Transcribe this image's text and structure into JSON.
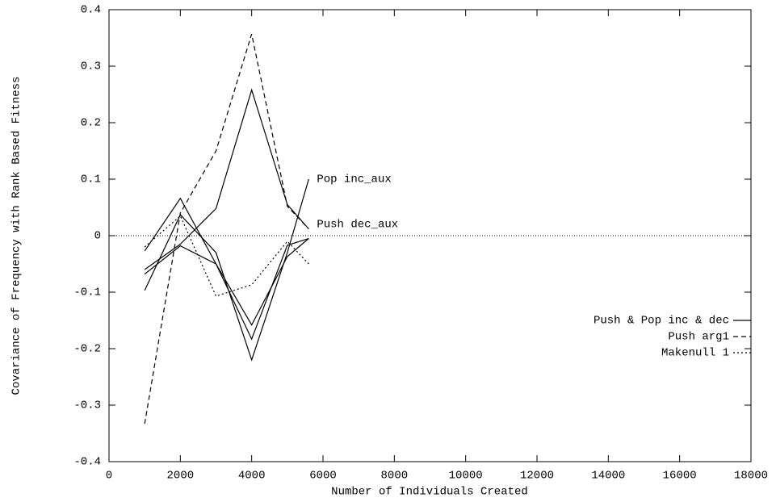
{
  "chart_data": {
    "type": "line",
    "x_label": "Number of Individuals Created",
    "y_label": "Covariance of Frequency with Rank Based Fitness",
    "x": [
      1000,
      2000,
      3000,
      4000,
      5000,
      5600
    ],
    "xlim": [
      0,
      18000
    ],
    "xticks": [
      0,
      2000,
      4000,
      6000,
      8000,
      10000,
      12000,
      14000,
      16000,
      18000
    ],
    "ylim": [
      -0.4,
      0.4
    ],
    "yticks": [
      -0.4,
      -0.3,
      -0.2,
      -0.1,
      0,
      0.1,
      0.2,
      0.3,
      0.4
    ],
    "zero_line": true,
    "legend_position": "right",
    "series": [
      {
        "name": "Push & Pop inc & dec",
        "style": "solid",
        "color": "#000000",
        "lines": [
          {
            "label": "Pop inc_aux",
            "values": [
              -0.097,
              0.037,
              -0.03,
              -0.22,
              -0.03,
              0.1
            ]
          },
          {
            "label": "Push dec_aux",
            "values": [
              -0.06,
              -0.015,
              0.048,
              0.258,
              0.055,
              0.012
            ]
          },
          {
            "values": [
              -0.027,
              0.066,
              -0.05,
              -0.183,
              -0.017,
              -0.005
            ]
          },
          {
            "values": [
              -0.068,
              -0.018,
              -0.05,
              -0.158,
              -0.037,
              -0.005
            ]
          }
        ]
      },
      {
        "name": "Push arg1",
        "style": "dashed",
        "color": "#000000",
        "values": [
          -0.333,
          0.04,
          0.15,
          0.357,
          0.052,
          0.012
        ]
      },
      {
        "name": "Makenull 1",
        "style": "dotted",
        "color": "#000000",
        "values": [
          -0.02,
          0.035,
          -0.107,
          -0.087,
          -0.01,
          -0.05
        ]
      }
    ]
  }
}
